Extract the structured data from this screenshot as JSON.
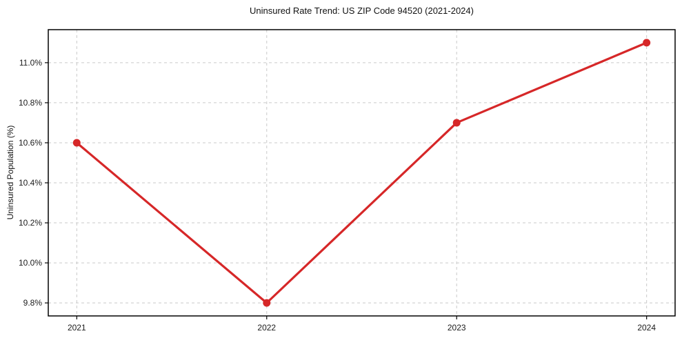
{
  "chart_data": {
    "type": "line",
    "title": "Uninsured Rate Trend: US ZIP Code 94520 (2021-2024)",
    "xlabel": "",
    "ylabel": "Uninsured Population (%)",
    "x": [
      2021,
      2022,
      2023,
      2024
    ],
    "series": [
      {
        "name": "Uninsured rate",
        "values": [
          10.6,
          9.8,
          10.7,
          11.1
        ]
      }
    ],
    "xticks": [
      2021,
      2022,
      2023,
      2024
    ],
    "xtick_labels": [
      "2021",
      "2022",
      "2023",
      "2024"
    ],
    "yticks": [
      9.8,
      10.0,
      10.2,
      10.4,
      10.6,
      10.8,
      11.0
    ],
    "ytick_labels": [
      "9.8%",
      "10.0%",
      "10.2%",
      "10.4%",
      "10.6%",
      "10.8%",
      "11.0%"
    ],
    "xlim": [
      2020.85,
      2024.15
    ],
    "ylim": [
      9.735,
      11.165
    ],
    "grid": true,
    "grid_style": "dashed",
    "legend": "none",
    "colors": {
      "line": "#d62728",
      "marker": "#d62728",
      "grid": "#c9c9c9",
      "axis": "#000000",
      "background": "#ffffff",
      "text": "#1a1a1a"
    }
  }
}
